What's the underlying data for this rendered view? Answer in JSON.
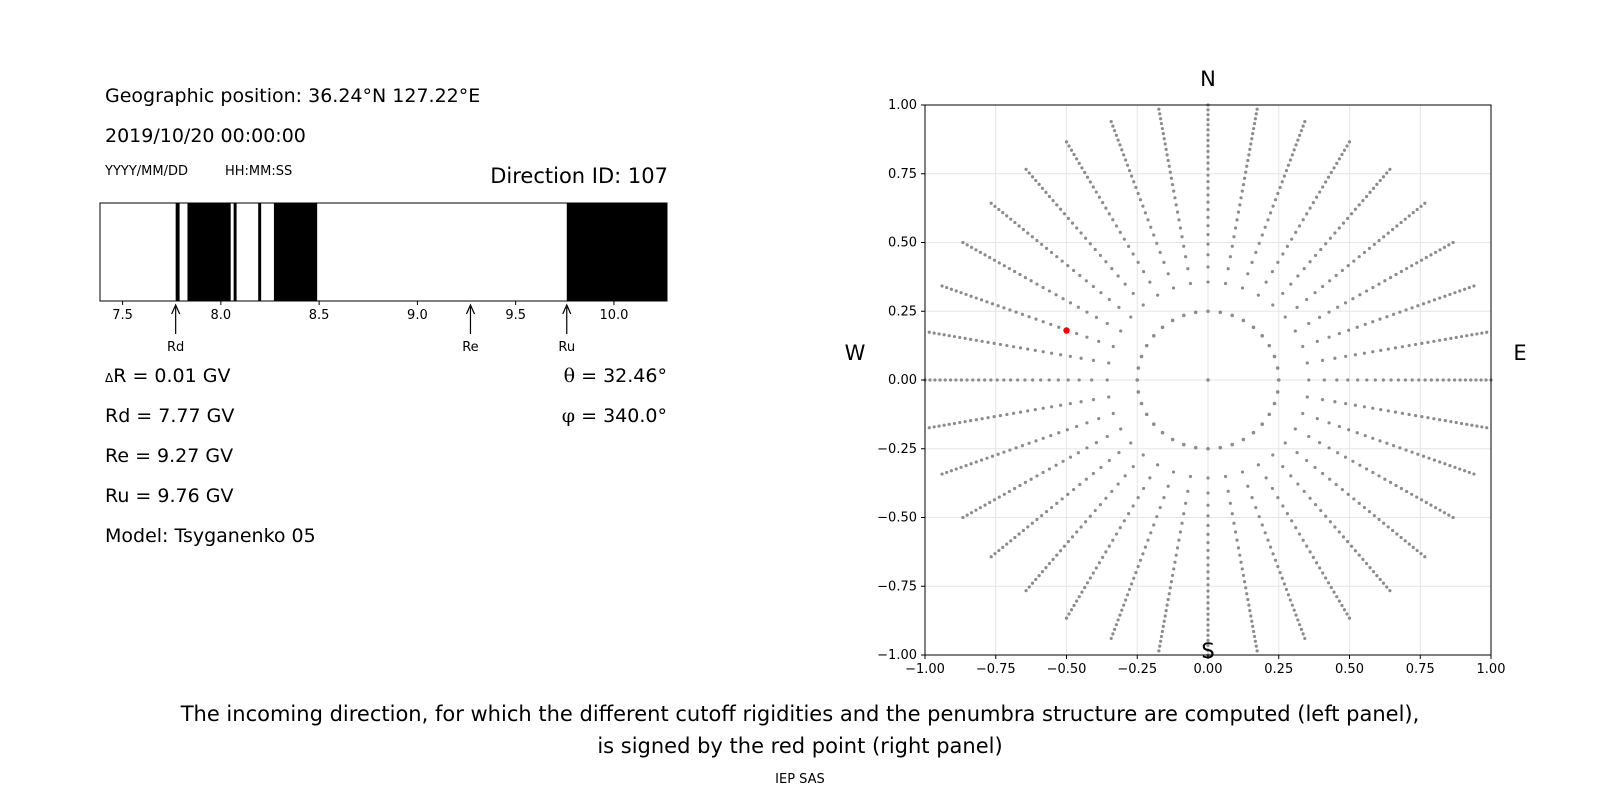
{
  "header": {
    "geo_position": "Geographic position: 36.24°N 127.22°E",
    "datetime": "2019/10/20 00:00:00",
    "date_format_label": "YYYY/MM/DD",
    "time_format_label": "HH:MM:SS",
    "direction_id": "Direction ID: 107"
  },
  "penumbra": {
    "x_range": [
      7.385,
      10.27
    ],
    "ticks": [
      "7.5",
      "8.0",
      "8.5",
      "9.0",
      "9.5",
      "10.0"
    ],
    "tick_values": [
      7.5,
      8.0,
      8.5,
      9.0,
      9.5,
      10.0
    ],
    "forbidden_bands": [
      [
        7.77,
        7.79
      ],
      [
        7.83,
        8.05
      ],
      [
        8.065,
        8.08
      ],
      [
        8.19,
        8.205
      ],
      [
        8.27,
        8.49
      ],
      [
        9.76,
        10.27
      ]
    ],
    "markers": [
      {
        "label": "Rd",
        "value": 7.77
      },
      {
        "label": "Re",
        "value": 9.27
      },
      {
        "label": "Ru",
        "value": 9.76
      }
    ]
  },
  "stats": {
    "delta_r_symbol": "Δ",
    "delta_r": "R = 0.01 GV",
    "rd": "Rd = 7.77 GV",
    "re": "Re = 9.27 GV",
    "ru": "Ru = 9.76 GV",
    "model": "Model: Tsyganenko 05",
    "theta_symbol": "θ",
    "theta": " = 32.46°",
    "phi_symbol": "φ",
    "phi": " = 340.0°"
  },
  "chart_data": {
    "type": "scatter",
    "xlim": [
      -1.0,
      1.0
    ],
    "ylim": [
      -1.0,
      1.0
    ],
    "grid": true,
    "x_ticks": [
      "−1.00",
      "−0.75",
      "−0.50",
      "−0.25",
      "0.00",
      "0.25",
      "0.50",
      "0.75",
      "1.00"
    ],
    "y_ticks": [
      "1.00",
      "0.75",
      "0.50",
      "0.25",
      "0.00",
      "−0.25",
      "−0.50",
      "−0.75",
      "−1.00"
    ],
    "tick_values": [
      -1.0,
      -0.75,
      -0.5,
      -0.25,
      0.0,
      0.25,
      0.5,
      0.75,
      1.0
    ],
    "compass": {
      "north": "N",
      "south": "S",
      "west": "W",
      "east": "E"
    },
    "directions": {
      "color": "#8c8c8c",
      "center": [
        0.0,
        0.0
      ],
      "ring_radius": 0.25,
      "ring_points": 36,
      "ray_count": 36,
      "ray_radius_range": [
        0.25,
        1.0
      ]
    },
    "selected": {
      "x": -0.5,
      "y": 0.18,
      "color": "#ff0000"
    }
  },
  "caption": {
    "line1": "The incoming direction, for which the different cutoff rigidities and the penumbra structure are computed (left panel),",
    "line2": "is signed by the red point (right panel)",
    "credit": "IEP SAS"
  }
}
